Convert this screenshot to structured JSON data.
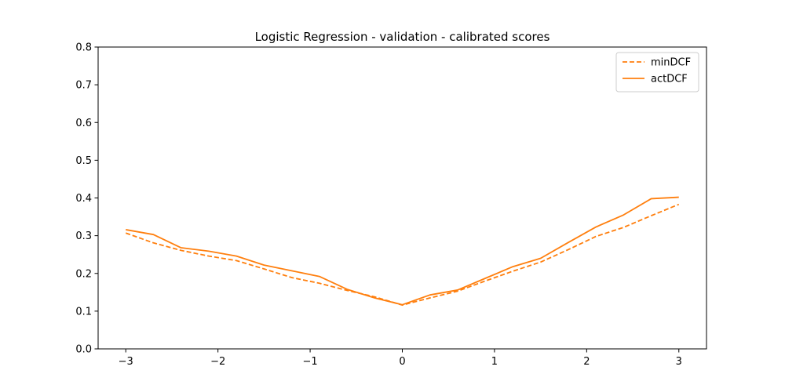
{
  "chart_data": {
    "type": "line",
    "title": "Logistic Regression - validation - calibrated scores",
    "xlabel": "",
    "ylabel": "",
    "xlim": [
      -3.3,
      3.3
    ],
    "ylim": [
      0.0,
      0.8
    ],
    "xticks": [
      -3,
      -2,
      -1,
      0,
      1,
      2,
      3
    ],
    "xtick_labels": [
      "−3",
      "−2",
      "−1",
      "0",
      "1",
      "2",
      "3"
    ],
    "yticks": [
      0.0,
      0.1,
      0.2,
      0.3,
      0.4,
      0.5,
      0.6,
      0.7,
      0.8
    ],
    "ytick_labels": [
      "0.0",
      "0.1",
      "0.2",
      "0.3",
      "0.4",
      "0.5",
      "0.6",
      "0.7",
      "0.8"
    ],
    "grid": false,
    "legend_position": "top-right",
    "x": [
      -3.0,
      -2.7,
      -2.4,
      -2.1,
      -1.8,
      -1.5,
      -1.2,
      -0.9,
      -0.6,
      -0.3,
      0.0,
      0.3,
      0.6,
      0.9,
      1.2,
      1.5,
      1.8,
      2.1,
      2.4,
      2.7,
      3.0
    ],
    "series": [
      {
        "name": "minDCF",
        "style": "dashed",
        "color": "#ff7f0e",
        "values": [
          0.307,
          0.281,
          0.261,
          0.246,
          0.234,
          0.212,
          0.189,
          0.174,
          0.155,
          0.138,
          0.116,
          0.135,
          0.153,
          0.18,
          0.206,
          0.23,
          0.263,
          0.298,
          0.322,
          0.353,
          0.383
        ]
      },
      {
        "name": "actDCF",
        "style": "solid",
        "color": "#ff7f0e",
        "values": [
          0.316,
          0.303,
          0.268,
          0.259,
          0.246,
          0.222,
          0.207,
          0.192,
          0.158,
          0.135,
          0.117,
          0.143,
          0.156,
          0.187,
          0.218,
          0.24,
          0.282,
          0.323,
          0.355,
          0.398,
          0.402
        ]
      }
    ]
  }
}
